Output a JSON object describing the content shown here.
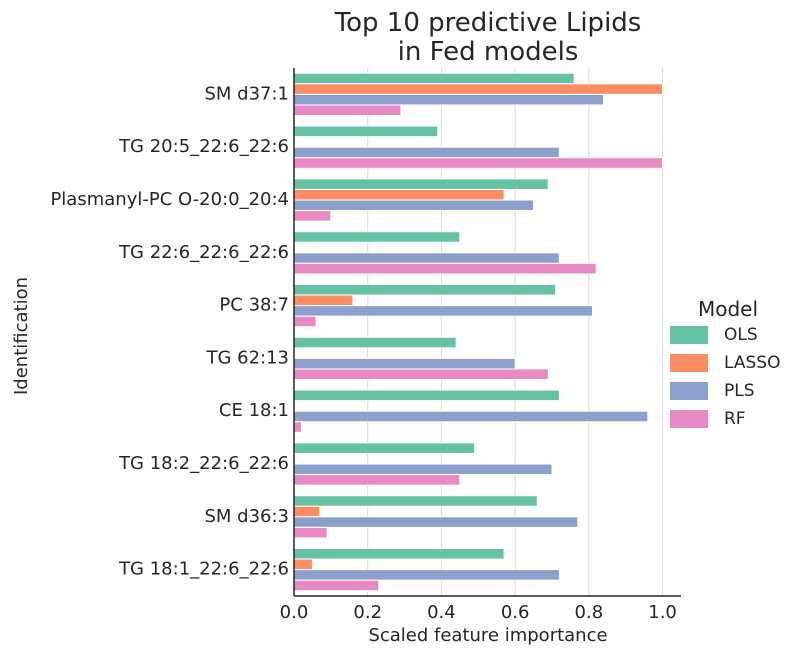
{
  "chart_data": {
    "type": "bar",
    "orientation": "horizontal",
    "title": [
      "Top 10 predictive Lipids",
      "in Fed models"
    ],
    "xlabel": "Scaled feature importance",
    "ylabel": "Identification",
    "xlim": [
      0,
      1.05
    ],
    "xticks": [
      "0.0",
      "0.2",
      "0.4",
      "0.6",
      "0.8",
      "1.0"
    ],
    "grid": "vertical",
    "legend": {
      "title": "Model",
      "placement": "right"
    },
    "categories": [
      "SM d37:1",
      "TG 20:5_22:6_22:6",
      "Plasmanyl-PC O-20:0_20:4",
      "TG 22:6_22:6_22:6",
      "PC 38:7",
      "TG 62:13",
      "CE 18:1",
      "TG 18:2_22:6_22:6",
      "SM d36:3",
      "TG 18:1_22:6_22:6"
    ],
    "series": [
      {
        "name": "OLS",
        "color": "#66c2a5",
        "values": [
          0.76,
          0.39,
          0.69,
          0.45,
          0.71,
          0.44,
          0.72,
          0.49,
          0.66,
          0.57
        ]
      },
      {
        "name": "LASSO",
        "color": "#fc8d62",
        "values": [
          1.0,
          0,
          0.57,
          0,
          0.16,
          0,
          0,
          0,
          0.07,
          0.05
        ]
      },
      {
        "name": "PLS",
        "color": "#8da0cb",
        "values": [
          0.84,
          0.72,
          0.65,
          0.72,
          0.81,
          0.6,
          0.96,
          0.7,
          0.77,
          0.72
        ]
      },
      {
        "name": "RF",
        "color": "#e78ac3",
        "values": [
          0.29,
          1.0,
          0.1,
          0.82,
          0.06,
          0.69,
          0.02,
          0.45,
          0.09,
          0.23
        ]
      }
    ]
  }
}
